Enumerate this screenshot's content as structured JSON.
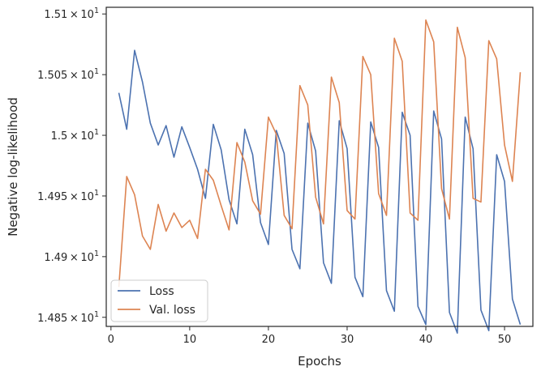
{
  "chart_data": {
    "type": "line",
    "xlabel": "Epochs",
    "ylabel": "Negative log-likelihood",
    "xlim": [
      -0.6,
      53.6
    ],
    "ylim": [
      14.8425,
      15.1055
    ],
    "x_ticks": [
      {
        "value": 0,
        "label": "0"
      },
      {
        "value": 10,
        "label": "10"
      },
      {
        "value": 20,
        "label": "20"
      },
      {
        "value": 30,
        "label": "30"
      },
      {
        "value": 40,
        "label": "40"
      },
      {
        "value": 50,
        "label": "50"
      }
    ],
    "y_ticks": [
      {
        "value": 14.85,
        "mantissa": "1.485",
        "base": "10",
        "exp": "1"
      },
      {
        "value": 14.9,
        "mantissa": "1.49",
        "base": "10",
        "exp": "1"
      },
      {
        "value": 14.95,
        "mantissa": "1.495",
        "base": "10",
        "exp": "1"
      },
      {
        "value": 15.0,
        "mantissa": "1.5",
        "base": "10",
        "exp": "1"
      },
      {
        "value": 15.05,
        "mantissa": "1.505",
        "base": "10",
        "exp": "1"
      },
      {
        "value": 15.1,
        "mantissa": "1.51",
        "base": "10",
        "exp": "1"
      }
    ],
    "grid": false,
    "legend_position": "lower-left",
    "x": [
      1,
      2,
      3,
      4,
      5,
      6,
      7,
      8,
      9,
      10,
      11,
      12,
      13,
      14,
      15,
      16,
      17,
      18,
      19,
      20,
      21,
      22,
      23,
      24,
      25,
      26,
      27,
      28,
      29,
      30,
      31,
      32,
      33,
      34,
      35,
      36,
      37,
      38,
      39,
      40,
      41,
      42,
      43,
      44,
      45,
      46,
      47,
      48,
      49,
      50,
      51,
      52
    ],
    "series": [
      {
        "name": "Loss",
        "color": "#4c72b0",
        "values": [
          15.035,
          15.005,
          15.07,
          15.044,
          15.01,
          14.992,
          15.008,
          14.982,
          15.007,
          14.99,
          14.972,
          14.948,
          15.009,
          14.988,
          14.947,
          14.927,
          15.005,
          14.984,
          14.928,
          14.91,
          15.004,
          14.985,
          14.906,
          14.89,
          15.01,
          14.987,
          14.895,
          14.878,
          15.012,
          14.989,
          14.883,
          14.867,
          15.011,
          14.99,
          14.872,
          14.855,
          15.019,
          15.0,
          14.859,
          14.844,
          15.02,
          14.997,
          14.854,
          14.837,
          15.015,
          14.989,
          14.856,
          14.839,
          14.984,
          14.962,
          14.865,
          14.844
        ]
      },
      {
        "name": "Val. loss",
        "color": "#dd8452",
        "values": [
          14.875,
          14.966,
          14.951,
          14.917,
          14.906,
          14.943,
          14.921,
          14.936,
          14.924,
          14.93,
          14.915,
          14.972,
          14.963,
          14.942,
          14.922,
          14.994,
          14.978,
          14.946,
          14.935,
          15.015,
          15.001,
          14.934,
          14.923,
          15.041,
          15.025,
          14.949,
          14.927,
          15.048,
          15.027,
          14.938,
          14.931,
          15.065,
          15.05,
          14.952,
          14.934,
          15.08,
          15.061,
          14.936,
          14.93,
          15.095,
          15.077,
          14.956,
          14.931,
          15.089,
          15.064,
          14.948,
          14.945,
          15.078,
          15.063,
          14.992,
          14.962,
          15.052
        ]
      }
    ]
  }
}
